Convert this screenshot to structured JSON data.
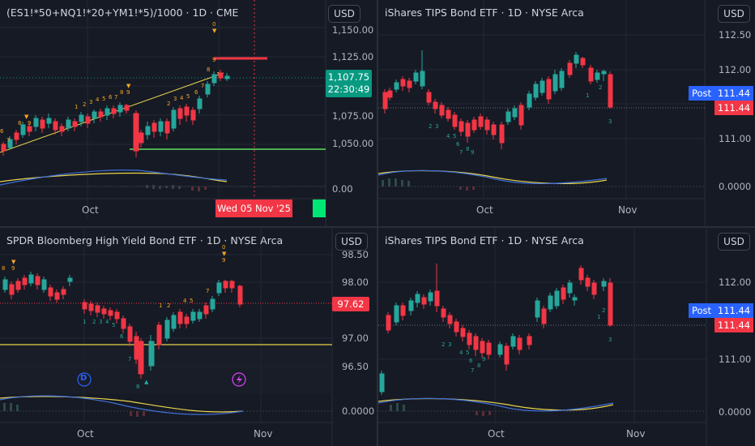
{
  "currency_label": "USD",
  "panes": [
    {
      "id": "es",
      "title": "(ES1!*50+NQ1!*20+YM1!*5)/1000 · 1D · CME",
      "price_labels": [
        "1,150.00",
        "1,125.00",
        "1,075.00",
        "1,050.00",
        "0.00"
      ],
      "last_price": "1,107.75",
      "countdown": "22:30:49",
      "x_labels": [
        "Oct"
      ],
      "crosshair_date": "Wed 05 Nov '25",
      "colors": {
        "last_price_bg": "#089981",
        "crosshair_bg": "#f23645",
        "green_marker": "#00e676"
      }
    },
    {
      "id": "tips-top",
      "title": "iShares TIPS Bond ETF · 1D · NYSE Arca",
      "price_labels": [
        "112.50",
        "112.00",
        "111.00",
        "0.0000"
      ],
      "post_label": "Post",
      "post_price": "111.44",
      "last_price": "111.44",
      "x_labels": [
        "Oct",
        "Nov"
      ],
      "colors": {
        "post_bg": "#2962ff",
        "last_price_bg": "#f23645"
      }
    },
    {
      "id": "hyg",
      "title": "SPDR Bloomberg High Yield Bond ETF · 1D · NYSE Arca",
      "price_labels": [
        "98.50",
        "98.00",
        "97.00",
        "96.50",
        "0.0000"
      ],
      "last_price": "97.62",
      "x_labels": [
        "Oct",
        "Nov"
      ],
      "event_dividend": "D",
      "colors": {
        "last_price_bg": "#f23645"
      }
    },
    {
      "id": "tips-bottom",
      "title": "iShares TIPS Bond ETF · 1D · NYSE Arca",
      "price_labels": [
        "112.00",
        "111.00",
        "0.0000"
      ],
      "post_label": "Post",
      "post_price": "111.44",
      "last_price": "111.44",
      "x_labels": [
        "Oct",
        "Nov"
      ],
      "colors": {
        "post_bg": "#2962ff",
        "last_price_bg": "#f23645"
      }
    }
  ],
  "colors": {
    "up": "#26a69a",
    "down": "#f23645",
    "countdown_orange": "#f5a623",
    "yellow_line": "#e8d44d",
    "blue_line": "#3f6fd8"
  }
}
